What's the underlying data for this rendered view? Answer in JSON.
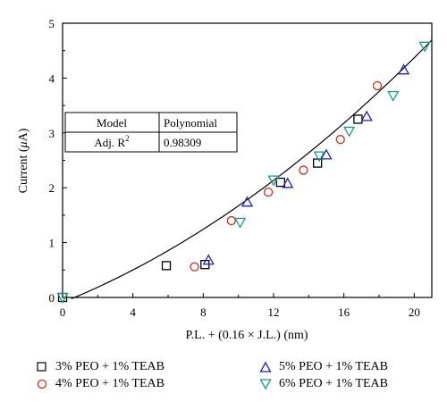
{
  "chart_data": {
    "type": "scatter",
    "xlabel": "P.L. + (0.16 × J.L.) (nm)",
    "ylabel_prefix": "Current (",
    "ylabel_mu": "μ",
    "ylabel_suffix": "A)",
    "xlim": [
      0,
      21
    ],
    "ylim": [
      0,
      5
    ],
    "x_ticks": [
      0,
      4,
      8,
      12,
      16,
      20
    ],
    "y_ticks": [
      0,
      1,
      2,
      3,
      4,
      5
    ],
    "grid": false,
    "fit": {
      "kind": "polynomial",
      "coefficients": [
        -0.09,
        0.129,
        0.0047
      ],
      "x_range": [
        0.5,
        21
      ]
    },
    "fit_table": {
      "header_left": "Model",
      "header_right": "Polynomial",
      "row_label": "Adj. R",
      "row_label_sup": "2",
      "row_value": "0.98309"
    },
    "series": [
      {
        "name": "3% PEO + 1% TEAB",
        "marker": "square",
        "color": "#000000",
        "points": [
          [
            0,
            0
          ],
          [
            5.9,
            0.58
          ],
          [
            8.1,
            0.6
          ],
          [
            12.4,
            2.1
          ],
          [
            14.5,
            2.45
          ],
          [
            16.8,
            3.25
          ]
        ]
      },
      {
        "name": "4% PEO + 1% TEAB",
        "marker": "circle",
        "color": "#d42a20",
        "points": [
          [
            7.5,
            0.56
          ],
          [
            9.6,
            1.4
          ],
          [
            11.7,
            1.92
          ],
          [
            13.7,
            2.32
          ],
          [
            15.8,
            2.88
          ],
          [
            17.9,
            3.86
          ]
        ]
      },
      {
        "name": "5% PEO + 1% TEAB",
        "marker": "triangle-up",
        "color": "#1a22c8",
        "points": [
          [
            8.3,
            0.68
          ],
          [
            10.5,
            1.74
          ],
          [
            12.8,
            2.08
          ],
          [
            15.0,
            2.6
          ],
          [
            17.3,
            3.3
          ],
          [
            19.4,
            4.15
          ]
        ]
      },
      {
        "name": "6% PEO + 1% TEAB",
        "marker": "triangle-down",
        "color": "#1a9a8a",
        "points": [
          [
            0,
            0
          ],
          [
            10.1,
            1.37
          ],
          [
            12.0,
            2.14
          ],
          [
            14.6,
            2.58
          ],
          [
            16.3,
            3.03
          ],
          [
            18.8,
            3.68
          ],
          [
            20.6,
            4.58
          ]
        ]
      }
    ]
  }
}
